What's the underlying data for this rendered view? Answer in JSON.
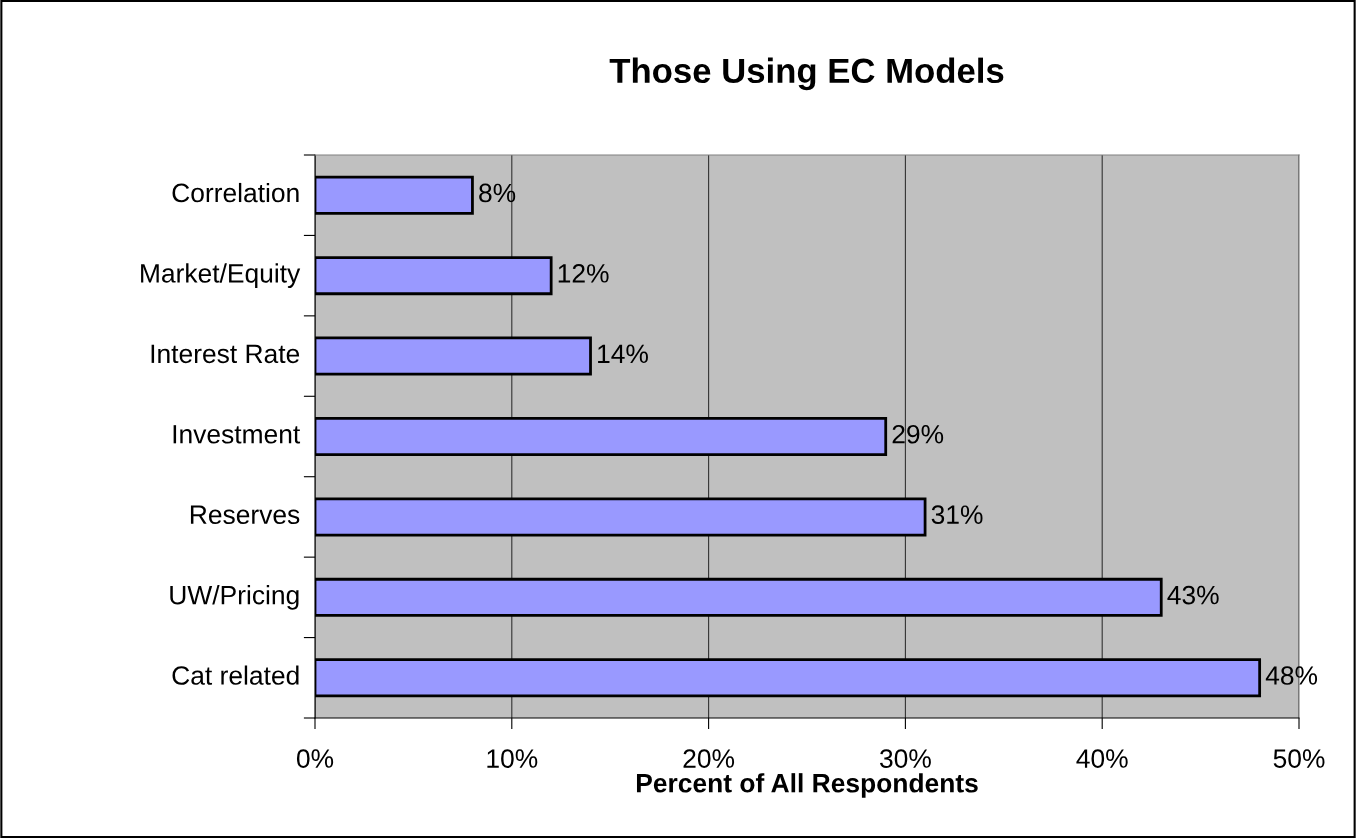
{
  "chart_data": {
    "type": "bar",
    "orientation": "horizontal",
    "title": "Those Using EC Models",
    "xlabel": "Percent of All Respondents",
    "categories": [
      "Correlation",
      "Market/Equity",
      "Interest Rate",
      "Investment",
      "Reserves",
      "UW/Pricing",
      "Cat related"
    ],
    "values": [
      8,
      12,
      14,
      29,
      31,
      43,
      48
    ],
    "value_labels": [
      "8%",
      "12%",
      "14%",
      "29%",
      "31%",
      "43%",
      "48%"
    ],
    "color": "#9999ff",
    "xlim": [
      0,
      50
    ],
    "xticks": [
      {
        "value": 0,
        "label": "0%"
      },
      {
        "value": 10,
        "label": "10%"
      },
      {
        "value": 20,
        "label": "20%"
      },
      {
        "value": 30,
        "label": "30%"
      },
      {
        "value": 40,
        "label": "40%"
      },
      {
        "value": 50,
        "label": "50%"
      }
    ],
    "grid": "x",
    "legend": false
  }
}
